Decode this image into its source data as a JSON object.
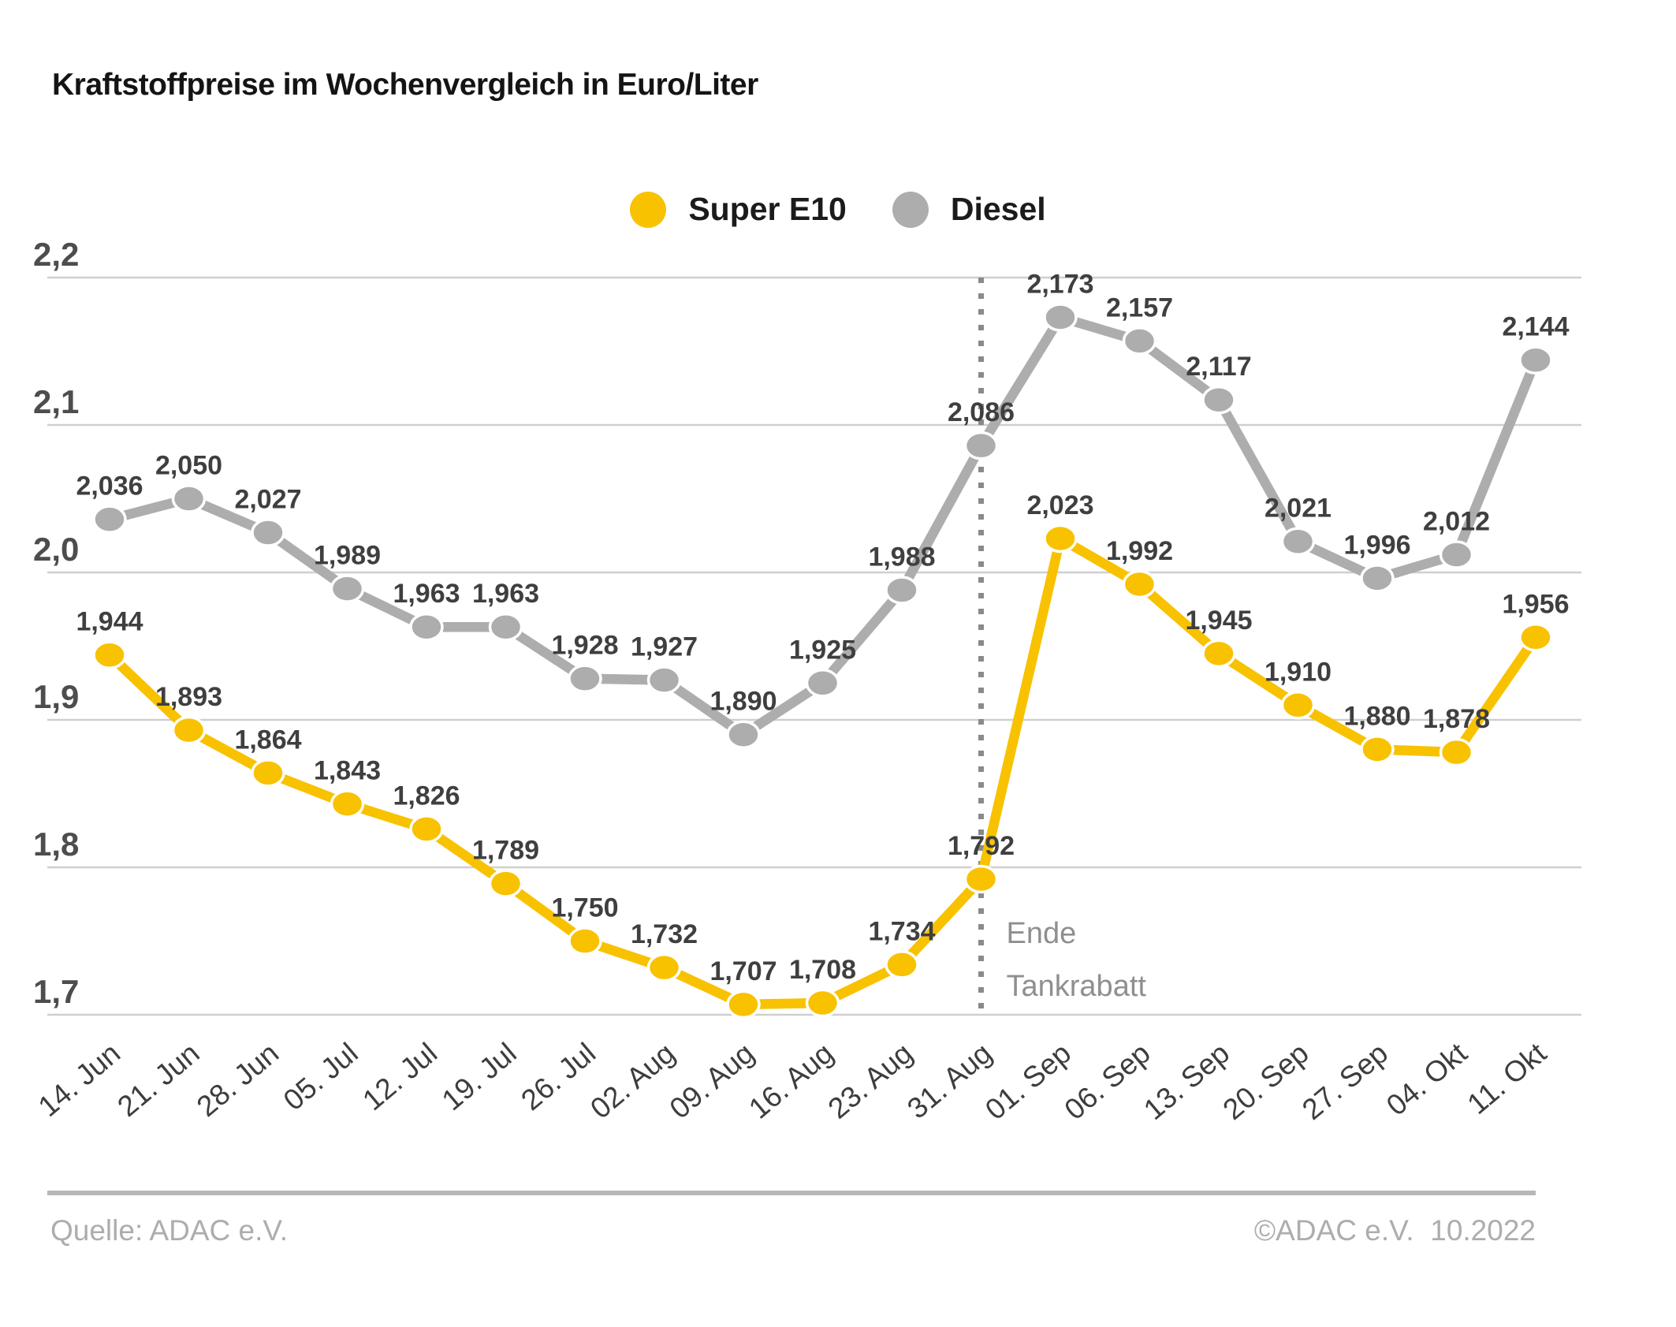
{
  "chart_data": {
    "type": "line",
    "title": "Kraftstoffpreise im Wochenvergleich in Euro/Liter",
    "categories": [
      "14. Jun",
      "21. Jun",
      "28. Jun",
      "05. Jul",
      "12. Jul",
      "19. Jul",
      "26. Jul",
      "02. Aug",
      "09. Aug",
      "16. Aug",
      "23. Aug",
      "31. Aug",
      "01. Sep",
      "06. Sep",
      "13. Sep",
      "20. Sep",
      "27. Sep",
      "04. Okt",
      "11. Okt"
    ],
    "series": [
      {
        "name": "Super E10",
        "color": "#f8c200",
        "values": [
          1.944,
          1.893,
          1.864,
          1.843,
          1.826,
          1.789,
          1.75,
          1.732,
          1.707,
          1.708,
          1.734,
          1.792,
          2.023,
          1.992,
          1.945,
          1.91,
          1.88,
          1.878,
          1.956
        ],
        "labels": [
          "1,944",
          "1,893",
          "1,864",
          "1,843",
          "1,826",
          "1,789",
          "1,750",
          "1,732",
          "1,707",
          "1,708",
          "1,734",
          "1,792",
          "2,023",
          "1,992",
          "1,945",
          "1,910",
          "1,880",
          "1,878",
          "1,956"
        ]
      },
      {
        "name": "Diesel",
        "color": "#adadad",
        "values": [
          2.036,
          2.05,
          2.027,
          1.989,
          1.963,
          1.963,
          1.928,
          1.927,
          1.89,
          1.925,
          1.988,
          2.086,
          2.173,
          2.157,
          2.117,
          2.021,
          1.996,
          2.012,
          2.144
        ],
        "labels": [
          "2,036",
          "2,050",
          "2,027",
          "1,989",
          "1,963",
          "1,963",
          "1,928",
          "1,927",
          "1,890",
          "1,925",
          "1,988",
          "2,086",
          "2,173",
          "2,157",
          "2,117",
          "2,021",
          "1,996",
          "2,012",
          "2,144"
        ]
      }
    ],
    "ylim": [
      1.7,
      2.2
    ],
    "yticks": [
      2.2,
      2.1,
      2.0,
      1.9,
      1.8,
      1.7
    ],
    "ytick_labels": [
      "2,2",
      "2,1",
      "2,0",
      "1,9",
      "1,8",
      "1,7"
    ],
    "xlabel": "",
    "ylabel": "",
    "grid": true,
    "legend_position": "top-center",
    "annotation": {
      "category": "31. Aug",
      "lines": [
        "Ende",
        "Tankrabatt"
      ],
      "color": "#8f8f8f"
    }
  },
  "footer": {
    "source": "Quelle: ADAC e.V.",
    "copyright": "©ADAC e.V.  10.2022"
  }
}
